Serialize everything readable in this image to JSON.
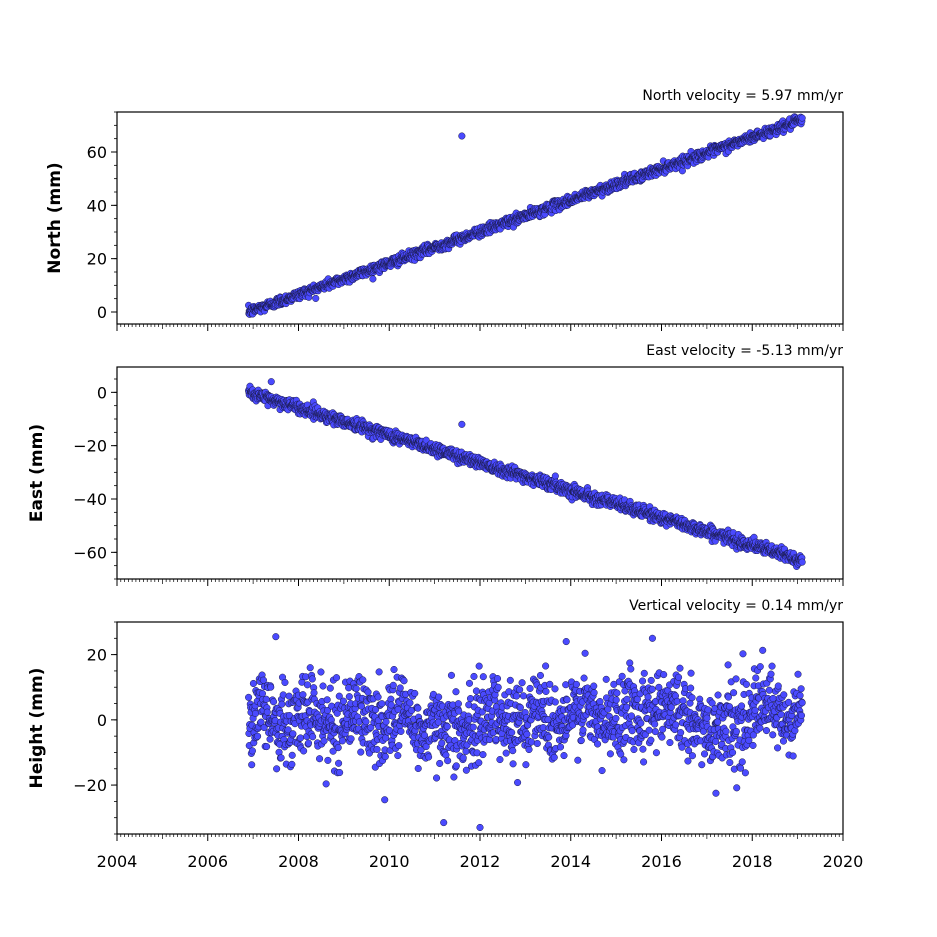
{
  "chart_data": [
    {
      "type": "scatter",
      "title": "North velocity = 5.97 mm/yr",
      "ylabel": "North (mm)",
      "xlim": [
        2004,
        2020
      ],
      "ylim": [
        -4.5,
        75
      ],
      "yticks": [
        0,
        20,
        40,
        60
      ],
      "x_tick_labels_shown": false,
      "series": [
        {
          "color": "#4a4aff",
          "trend": {
            "x_start": 2006.9,
            "x_end": 2019.1,
            "y_start": 0,
            "y_end": 72
          },
          "outliers": [
            {
              "x": 2011.6,
              "y": 66
            }
          ]
        }
      ]
    },
    {
      "type": "scatter",
      "title": "East velocity = -5.13 mm/yr",
      "ylabel": "East (mm)",
      "xlim": [
        2004,
        2020
      ],
      "ylim": [
        -70,
        9.5
      ],
      "yticks": [
        0,
        -20,
        -40,
        -60
      ],
      "x_tick_labels_shown": false,
      "series": [
        {
          "color": "#4a4aff",
          "trend": {
            "x_start": 2006.9,
            "x_end": 2019.1,
            "y_start": 0,
            "y_end": -63
          },
          "outliers": [
            {
              "x": 2011.6,
              "y": -12
            },
            {
              "x": 2007.4,
              "y": 4
            }
          ]
        }
      ]
    },
    {
      "type": "scatter",
      "title": "Vertical velocity = 0.14 mm/yr",
      "ylabel": "Height (mm)",
      "xlim": [
        2004,
        2020
      ],
      "ylim": [
        -35,
        30
      ],
      "yticks": [
        20,
        0,
        -20
      ],
      "x_tick_labels_shown": true,
      "series": [
        {
          "color": "#4a4aff",
          "trend": {
            "x_start": 2006.9,
            "x_end": 2019.1,
            "y_start": 0,
            "y_end": 1.7
          },
          "outliers": [
            {
              "x": 2007.5,
              "y": 25.5
            },
            {
              "x": 2015.8,
              "y": 25
            },
            {
              "x": 2013.9,
              "y": 24
            },
            {
              "x": 2012.0,
              "y": -33
            },
            {
              "x": 2011.2,
              "y": -31.5
            },
            {
              "x": 2009.9,
              "y": -24.5
            },
            {
              "x": 2017.2,
              "y": -22.5
            }
          ]
        }
      ]
    }
  ],
  "x_axis": {
    "ticks": [
      "2004",
      "2006",
      "2008",
      "2010",
      "2012",
      "2014",
      "2016",
      "2018",
      "2020"
    ]
  }
}
